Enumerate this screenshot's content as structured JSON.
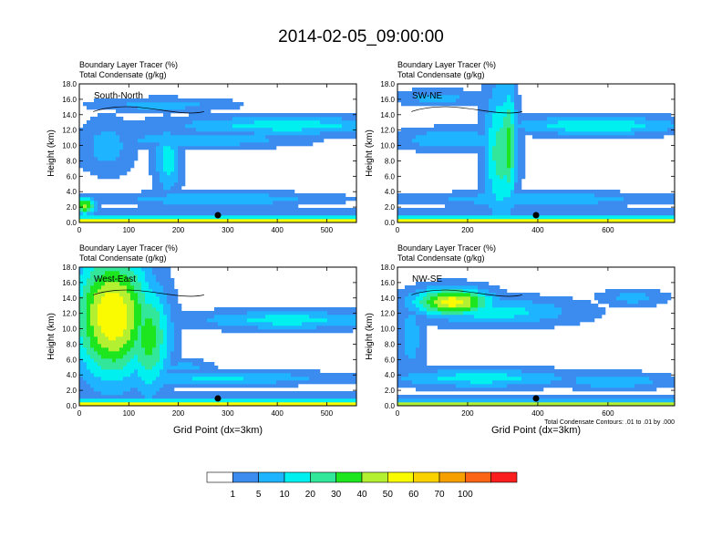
{
  "title": "2014-02-05_09:00:00",
  "colors": {
    "levels": [
      "#ffffff",
      "#3c8cf0",
      "#1eb4ff",
      "#00f0f0",
      "#32e69a",
      "#1ee61e",
      "#b4f032",
      "#fafa00",
      "#fad200",
      "#f5a000",
      "#fa6414",
      "#fa1e1e"
    ],
    "contour": "#000000"
  },
  "chart_data": [
    {
      "type": "heatmap",
      "title_lines": [
        "Boundary Layer Tracer   (%)",
        "Total Condensate   (g/kg)"
      ],
      "label": "South-North",
      "ylabel": "Height (km)",
      "xlabel": "",
      "xlim": [
        0,
        560
      ],
      "ylim": [
        0,
        18
      ],
      "xticks": [
        "0",
        "100",
        "200",
        "300",
        "400",
        "500"
      ],
      "xtick_values": [
        0,
        100,
        200,
        300,
        400,
        500
      ],
      "yticks": [
        "0.0",
        "2.0",
        "4.0",
        "6.0",
        "8.0",
        "10.0",
        "12.0",
        "14.0",
        "16.0",
        "18.0"
      ],
      "marker_x": 280
    },
    {
      "type": "heatmap",
      "title_lines": [
        "Boundary Layer Tracer   (%)",
        "Total Condensate   (g/kg)"
      ],
      "label": "SW-NE",
      "ylabel": "Height (km)",
      "xlabel": "",
      "xlim": [
        0,
        790
      ],
      "ylim": [
        0,
        18
      ],
      "xticks": [
        "0",
        "200",
        "400",
        "600"
      ],
      "xtick_values": [
        0,
        200,
        400,
        600
      ],
      "yticks": [
        "0.0",
        "2.0",
        "4.0",
        "6.0",
        "8.0",
        "10.0",
        "12.0",
        "14.0",
        "16.0",
        "18.0"
      ],
      "marker_x": 395
    },
    {
      "type": "heatmap",
      "title_lines": [
        "Boundary Layer Tracer   (%)",
        "Total Condensate   (g/kg)"
      ],
      "label": "West-East",
      "ylabel": "Height (km)",
      "xlabel": "Grid Point (dx=3km)",
      "xlim": [
        0,
        560
      ],
      "ylim": [
        0,
        18
      ],
      "xticks": [
        "0",
        "100",
        "200",
        "300",
        "400",
        "500"
      ],
      "xtick_values": [
        0,
        100,
        200,
        300,
        400,
        500
      ],
      "yticks": [
        "0.0",
        "2.0",
        "4.0",
        "6.0",
        "8.0",
        "10.0",
        "12.0",
        "14.0",
        "16.0",
        "18.0"
      ],
      "marker_x": 280
    },
    {
      "type": "heatmap",
      "title_lines": [
        "Boundary Layer Tracer   (%)",
        "Total Condensate   (g/kg)"
      ],
      "label": "NW-SE",
      "ylabel": "Height (km)",
      "xlabel": "Grid Point (dx=3km)",
      "xlim": [
        0,
        790
      ],
      "ylim": [
        0,
        18
      ],
      "xticks": [
        "0",
        "200",
        "400",
        "600"
      ],
      "xtick_values": [
        0,
        200,
        400,
        600
      ],
      "yticks": [
        "0.0",
        "2.0",
        "4.0",
        "6.0",
        "8.0",
        "10.0",
        "12.0",
        "14.0",
        "16.0",
        "18.0"
      ],
      "marker_x": 395,
      "footnote": "Total Condensate Contours: .01 to .01 by .000"
    }
  ],
  "colorbar": {
    "labels": [
      "1",
      "5",
      "10",
      "20",
      "30",
      "40",
      "50",
      "60",
      "70",
      "100"
    ]
  }
}
